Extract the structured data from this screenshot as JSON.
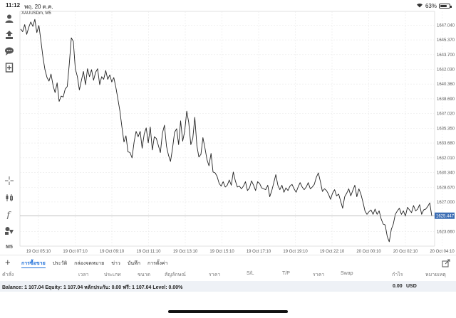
{
  "status_bar": {
    "time": "11:12",
    "date": "พฤ. 20 ต.ค.",
    "battery_percent": "63%",
    "battery_level": 0.63
  },
  "toolbar": {
    "icons": [
      "account-icon",
      "trade-icon",
      "chat-icon",
      "new-order-icon",
      "crosshair-icon",
      "chart-type-icon",
      "indicators-icon",
      "objects-icon",
      "timeframe-icon"
    ],
    "timeframe_label": "M5"
  },
  "chart": {
    "symbol_label": "XAUUSDm, M5",
    "current_price_label": "1625.447",
    "colors": {
      "line": "#222222",
      "price_tag": "#3c6eb4",
      "grid": "#e9e9e9"
    }
  },
  "chart_data": {
    "type": "line",
    "title": "XAUUSDm, M5",
    "ylim": [
      1622.0,
      1648.6
    ],
    "yticks": [
      "1647.040",
      "1645.370",
      "1643.700",
      "1642.030",
      "1640.360",
      "1638.690",
      "1637.020",
      "1635.350",
      "1633.680",
      "1632.010",
      "1630.340",
      "1628.670",
      "1627.000",
      "1623.660"
    ],
    "ytick_values": [
      1647.04,
      1645.37,
      1643.7,
      1642.03,
      1640.36,
      1638.69,
      1637.02,
      1635.35,
      1633.68,
      1632.01,
      1630.34,
      1628.67,
      1627.0,
      1623.66
    ],
    "xticks": [
      "19 Oct 05:10",
      "19 Oct 07:10",
      "19 Oct 09:10",
      "19 Oct 11:10",
      "19 Oct 13:10",
      "19 Oct 15:10",
      "19 Oct 17:10",
      "19 Oct 19:10",
      "19 Oct 22:10",
      "20 Oct 00:10",
      "20 Oct 02:10",
      "20 Oct 04:10"
    ],
    "current_price": 1625.447,
    "grid": true,
    "series": [
      {
        "values": [
          1646.6,
          1646.3,
          1647.1,
          1646.0,
          1646.8,
          1647.4,
          1646.9,
          1647.7,
          1646.2,
          1647.0,
          1645.3,
          1643.4,
          1642.0,
          1641.1,
          1640.7,
          1641.5,
          1640.2,
          1639.4,
          1640.5,
          1638.4,
          1639.0,
          1638.9,
          1639.8,
          1640.1,
          1642.6,
          1645.6,
          1645.2,
          1642.1,
          1641.2,
          1639.7,
          1640.8,
          1641.8,
          1640.3,
          1642.1,
          1641.2,
          1642.0,
          1640.8,
          1641.7,
          1642.1,
          1640.3,
          1641.2,
          1640.9,
          1641.9,
          1640.9,
          1641.4,
          1640.6,
          1641.1,
          1640.0,
          1638.7,
          1637.3,
          1635.5,
          1633.8,
          1634.5,
          1632.7,
          1632.6,
          1632.0,
          1633.8,
          1635.0,
          1634.4,
          1635.0,
          1633.1,
          1634.7,
          1635.4,
          1633.7,
          1635.5,
          1632.9,
          1634.4,
          1634.2,
          1633.4,
          1632.6,
          1634.8,
          1635.7,
          1633.3,
          1632.3,
          1631.6,
          1633.1,
          1634.9,
          1635.3,
          1633.5,
          1636.2,
          1633.9,
          1635.0,
          1637.3,
          1636.0,
          1633.5,
          1634.2,
          1636.6,
          1633.4,
          1632.1,
          1632.4,
          1634.3,
          1633.1,
          1631.8,
          1631.1,
          1632.5,
          1630.4,
          1630.3,
          1629.9,
          1629.1,
          1628.8,
          1629.3,
          1628.7,
          1628.9,
          1629.5,
          1628.9,
          1630.4,
          1629.4,
          1628.7,
          1628.8,
          1628.5,
          1628.8,
          1629.3,
          1628.3,
          1628.6,
          1629.4,
          1628.9,
          1628.3,
          1629.3,
          1629.1,
          1628.6,
          1628.5,
          1628.4,
          1628.9,
          1627.6,
          1628.3,
          1629.2,
          1630.1,
          1628.9,
          1628.4,
          1628.9,
          1628.1,
          1628.6,
          1628.3,
          1628.8,
          1629.0,
          1628.5,
          1628.1,
          1628.7,
          1629.2,
          1628.7,
          1628.4,
          1628.7,
          1629.2,
          1628.5,
          1628.7,
          1629.0,
          1629.8,
          1630.3,
          1629.3,
          1628.2,
          1628.5,
          1628.3,
          1627.9,
          1627.3,
          1628.0,
          1628.4,
          1627.7,
          1627.9,
          1627.1,
          1626.3,
          1627.6,
          1628.0,
          1628.5,
          1627.7,
          1628.3,
          1628.9,
          1627.6,
          1628.5,
          1627.9,
          1627.0,
          1626.0,
          1625.6,
          1625.9,
          1626.1,
          1625.6,
          1626.2,
          1625.6,
          1626.0,
          1625.1,
          1624.5,
          1624.4,
          1623.1,
          1622.5,
          1623.9,
          1624.5,
          1625.6,
          1626.0,
          1626.3,
          1625.6,
          1626.0,
          1625.4,
          1626.4,
          1626.1,
          1625.8,
          1626.6,
          1626.0,
          1626.2,
          1626.7,
          1625.6,
          1626.1,
          1626.2,
          1626.5,
          1626.9,
          1625.4
        ]
      }
    ]
  },
  "tabs": [
    "การซื้อขาย",
    "ประวัติ",
    "กล่องจดหมาย",
    "ข่าว",
    "บันทึก",
    "การตั้งค่า"
  ],
  "active_tab": 0,
  "columns": [
    "คำสั่ง",
    "เวลา",
    "ประเภท",
    "ขนาด",
    "สัญลักษณ์",
    "ราคา",
    "S/L",
    "T/P",
    "ราคา",
    "Swap",
    "กำไร",
    "หมายเหตุ"
  ],
  "balance": {
    "text": "Balance: 1 107.04 Equity: 1 107.04 หลักประกัน: 0.00 ฟรี: 1 107.04 Level: 0.00%",
    "profit": "0.00",
    "currency": "USD"
  }
}
